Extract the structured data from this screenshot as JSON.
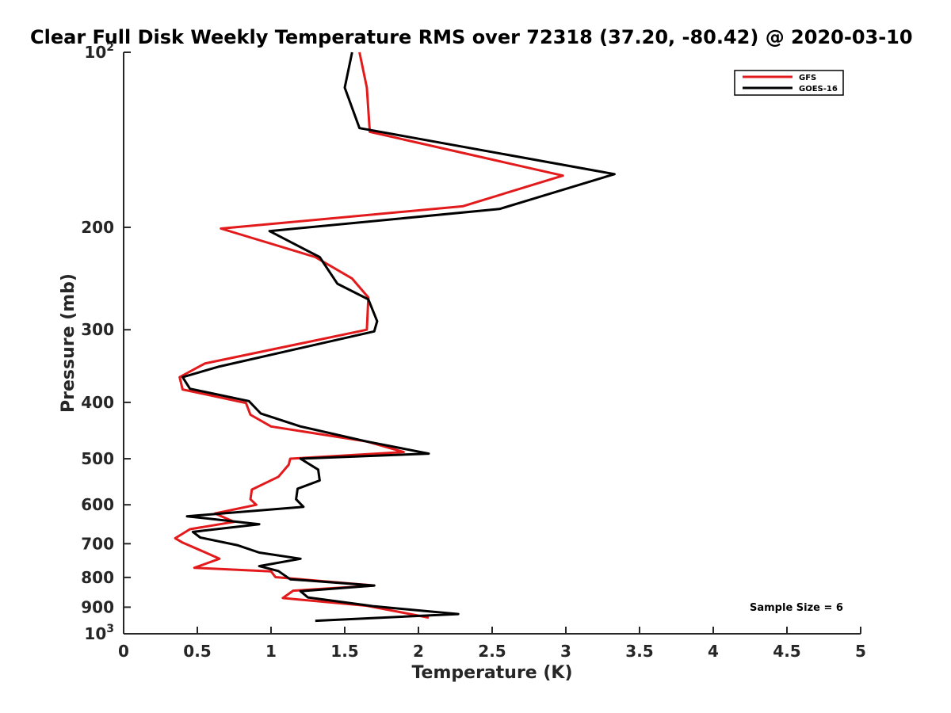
{
  "chart_data": {
    "type": "line",
    "title": "Clear Full Disk Weekly Temperature RMS over 72318 (37.20, -80.42) @ 2020-03-10",
    "xlabel": "Temperature (K)",
    "ylabel": "Pressure (mb)",
    "xlim": [
      0,
      5
    ],
    "ylim": [
      100,
      1000
    ],
    "y_scale": "log",
    "y_reversed": true,
    "grid": false,
    "legend_position": "top-right",
    "x_ticks": [
      0,
      0.5,
      1,
      1.5,
      2,
      2.5,
      3,
      3.5,
      4,
      4.5,
      5
    ],
    "x_tick_labels": [
      "0",
      "0.5",
      "1",
      "1.5",
      "2",
      "2.5",
      "3",
      "3.5",
      "4",
      "4.5",
      "5"
    ],
    "y_ticks": [
      {
        "value": 100,
        "base": "10",
        "exp": "2"
      },
      {
        "value": 200,
        "label": "200"
      },
      {
        "value": 300,
        "label": "300"
      },
      {
        "value": 400,
        "label": "400"
      },
      {
        "value": 500,
        "label": "500"
      },
      {
        "value": 600,
        "label": "600"
      },
      {
        "value": 700,
        "label": "700"
      },
      {
        "value": 800,
        "label": "800"
      },
      {
        "value": 900,
        "label": "900"
      },
      {
        "value": 1000,
        "base": "10",
        "exp": "3"
      }
    ],
    "annotation": "Sample Size = 6",
    "series": [
      {
        "name": "GFS",
        "color": "#e31a1c",
        "points": [
          [
            1.6,
            100
          ],
          [
            1.65,
            115
          ],
          [
            1.67,
            137
          ],
          [
            2.98,
            163
          ],
          [
            2.3,
            184
          ],
          [
            0.66,
            201
          ],
          [
            1.3,
            225
          ],
          [
            1.55,
            245
          ],
          [
            1.66,
            264
          ],
          [
            1.65,
            300
          ],
          [
            0.55,
            343
          ],
          [
            0.38,
            362
          ],
          [
            0.4,
            380
          ],
          [
            0.83,
            401
          ],
          [
            0.86,
            420
          ],
          [
            1.0,
            440
          ],
          [
            1.65,
            467
          ],
          [
            1.9,
            487
          ],
          [
            1.13,
            500
          ],
          [
            1.12,
            512
          ],
          [
            1.05,
            537
          ],
          [
            0.87,
            565
          ],
          [
            0.86,
            587
          ],
          [
            0.9,
            600
          ],
          [
            0.62,
            621
          ],
          [
            0.75,
            642
          ],
          [
            0.45,
            661
          ],
          [
            0.35,
            685
          ],
          [
            0.4,
            697
          ],
          [
            0.55,
            724
          ],
          [
            0.65,
            743
          ],
          [
            0.48,
            770
          ],
          [
            1.0,
            781
          ],
          [
            1.03,
            799
          ],
          [
            1.7,
            826
          ],
          [
            1.15,
            843
          ],
          [
            1.08,
            868
          ],
          [
            1.65,
            895
          ],
          [
            2.07,
            938
          ]
        ]
      },
      {
        "name": "GOES-16",
        "color": "#000000",
        "points": [
          [
            1.55,
            100
          ],
          [
            1.5,
            115
          ],
          [
            1.6,
            135
          ],
          [
            3.33,
            162
          ],
          [
            2.55,
            186
          ],
          [
            0.99,
            203
          ],
          [
            1.33,
            225
          ],
          [
            1.45,
            250
          ],
          [
            1.66,
            266
          ],
          [
            1.72,
            290
          ],
          [
            1.7,
            302
          ],
          [
            0.65,
            347
          ],
          [
            0.4,
            362
          ],
          [
            0.45,
            379
          ],
          [
            0.85,
            398
          ],
          [
            0.93,
            418
          ],
          [
            1.2,
            440
          ],
          [
            1.65,
            467
          ],
          [
            2.07,
            490
          ],
          [
            1.2,
            500
          ],
          [
            1.32,
            522
          ],
          [
            1.33,
            545
          ],
          [
            1.18,
            563
          ],
          [
            1.17,
            587
          ],
          [
            1.22,
            605
          ],
          [
            0.43,
            628
          ],
          [
            0.92,
            648
          ],
          [
            0.47,
            668
          ],
          [
            0.52,
            683
          ],
          [
            0.77,
            704
          ],
          [
            0.92,
            725
          ],
          [
            1.2,
            743
          ],
          [
            0.92,
            765
          ],
          [
            1.05,
            780
          ],
          [
            1.13,
            806
          ],
          [
            1.7,
            826
          ],
          [
            1.2,
            845
          ],
          [
            1.25,
            866
          ],
          [
            1.7,
            897
          ],
          [
            2.27,
            925
          ],
          [
            1.3,
            950
          ]
        ]
      }
    ]
  }
}
